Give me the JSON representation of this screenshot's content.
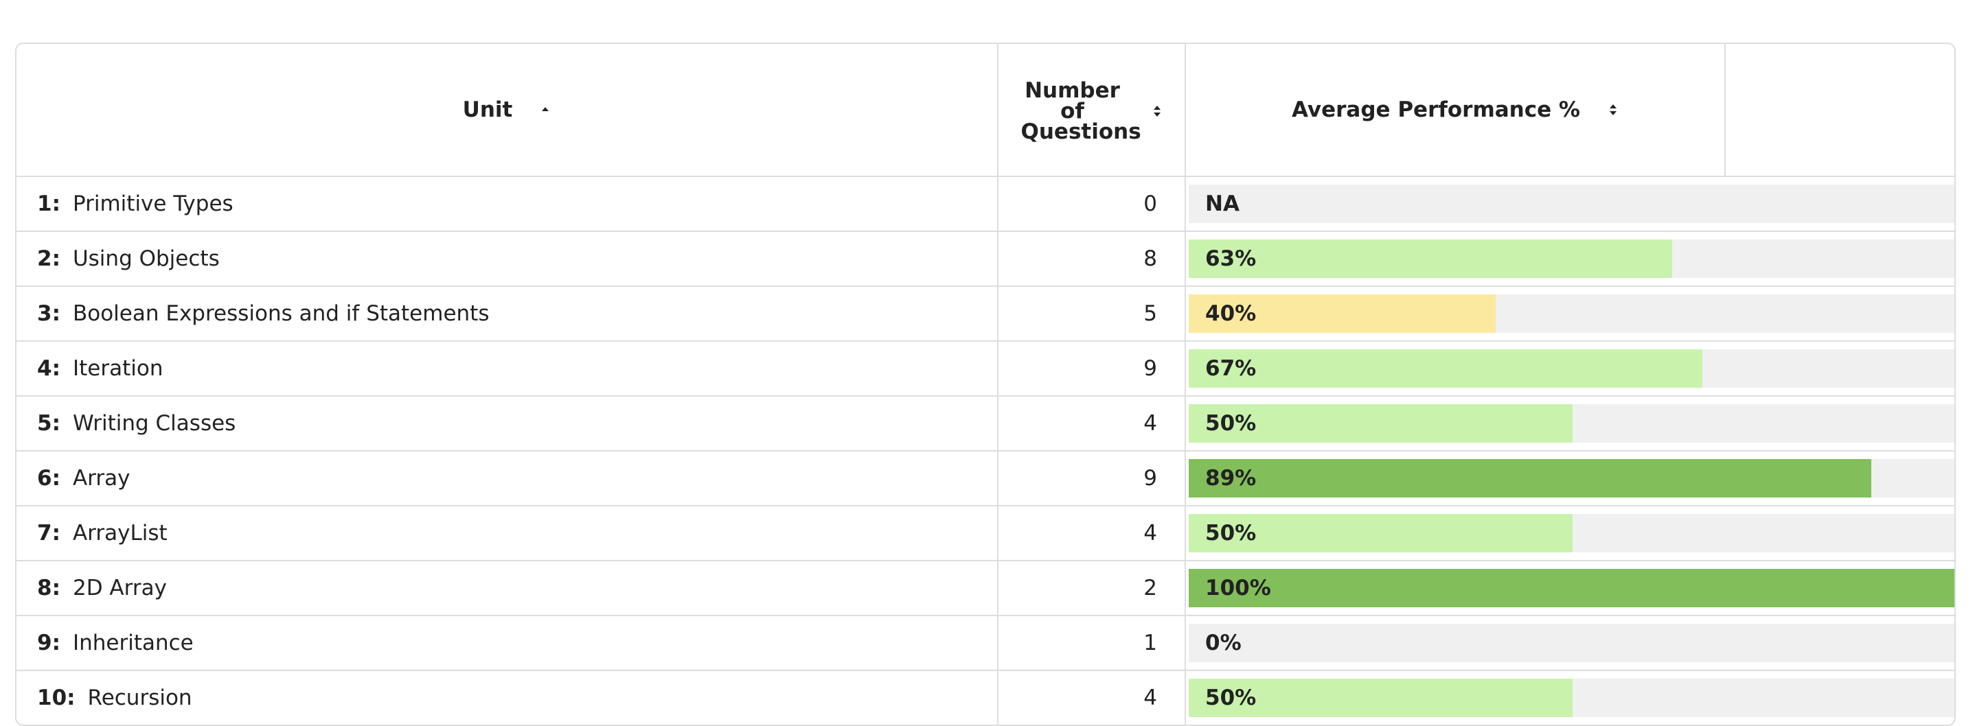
{
  "table": {
    "headers": [
      "Unit",
      "Number of Questions",
      "Average Performance %"
    ],
    "rows": [
      {
        "number": "1:",
        "name": "Primitive Types",
        "questions": 0,
        "performance": {
          "value": null,
          "label": "NA"
        },
        "bar_color": "#c9f2ad"
      },
      {
        "number": "2:",
        "name": "Using Objects",
        "questions": 8,
        "performance": {
          "value": 63,
          "label": "63%"
        },
        "bar_color": "#c9f2ad"
      },
      {
        "number": "3:",
        "name": "Boolean Expressions and if Statements",
        "questions": 5,
        "performance": {
          "value": 40,
          "label": "40%"
        },
        "bar_color": "#fce9a0"
      },
      {
        "number": "4:",
        "name": "Iteration",
        "questions": 9,
        "performance": {
          "value": 67,
          "label": "67%"
        },
        "bar_color": "#c9f2ad"
      },
      {
        "number": "5:",
        "name": "Writing Classes",
        "questions": 4,
        "performance": {
          "value": 50,
          "label": "50%"
        },
        "bar_color": "#c9f2ad"
      },
      {
        "number": "6:",
        "name": "Array",
        "questions": 9,
        "performance": {
          "value": 89,
          "label": "89%"
        },
        "bar_color": "#82bf5a"
      },
      {
        "number": "7:",
        "name": "ArrayList",
        "questions": 4,
        "performance": {
          "value": 50,
          "label": "50%"
        },
        "bar_color": "#c9f2ad"
      },
      {
        "number": "8:",
        "name": "2D Array",
        "questions": 2,
        "performance": {
          "value": 100,
          "label": "100%"
        },
        "bar_color": "#82bf5a"
      },
      {
        "number": "9:",
        "name": "Inheritance",
        "questions": 1,
        "performance": {
          "value": 0,
          "label": "0%"
        },
        "bar_color": "#c9f2ad"
      },
      {
        "number": "10:",
        "name": "Recursion",
        "questions": 4,
        "performance": {
          "value": 50,
          "label": "50%"
        },
        "bar_color": "#c9f2ad"
      }
    ],
    "scale_max": 100
  }
}
